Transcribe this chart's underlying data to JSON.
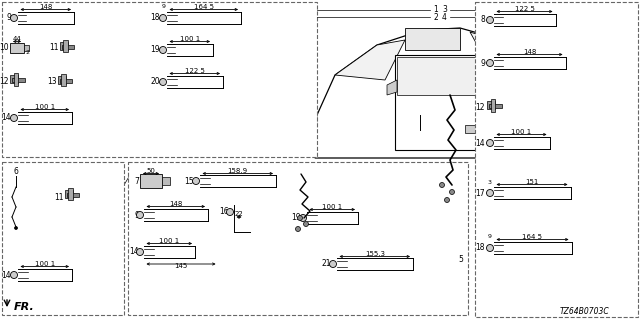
{
  "bg_color": "#ffffff",
  "line_color": "#000000",
  "gray_shade": "#aaaaaa",
  "dark_gray": "#555555",
  "dashed_color": "#666666",
  "diagram_code": "TZ64B0703C",
  "figsize": [
    6.4,
    3.2
  ],
  "dpi": 100
}
